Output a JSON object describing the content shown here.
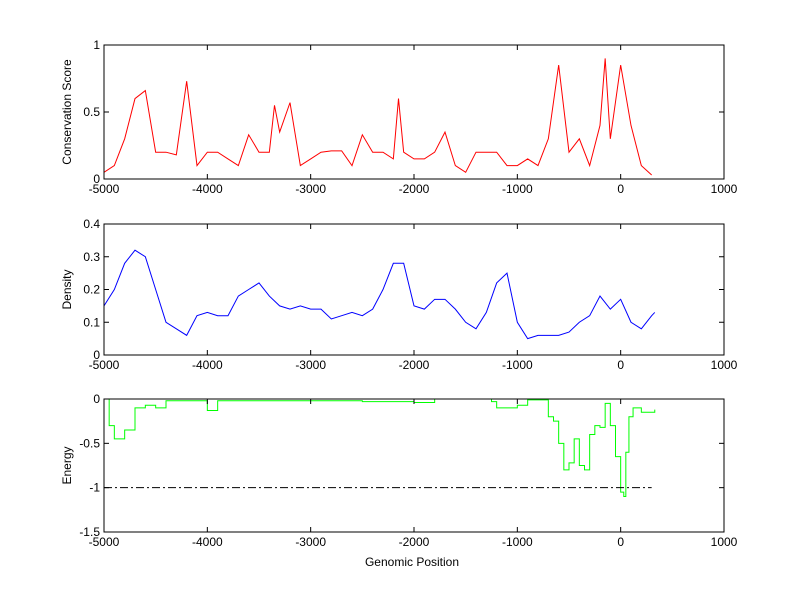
{
  "chart_data": [
    {
      "type": "line",
      "title": "",
      "xlabel": "",
      "ylabel": "Conservation Score",
      "xlim": [
        -5000,
        1000
      ],
      "ylim": [
        0,
        1
      ],
      "xticks": [
        "-5000",
        "-4000",
        "-3000",
        "-2000",
        "-1000",
        "0",
        "1000"
      ],
      "yticks": [
        "0",
        "0.5",
        "1"
      ],
      "color": "#ff0000",
      "x": [
        -5000,
        -4900,
        -4800,
        -4700,
        -4600,
        -4500,
        -4400,
        -4300,
        -4200,
        -4100,
        -4000,
        -3900,
        -3800,
        -3700,
        -3600,
        -3500,
        -3400,
        -3350,
        -3300,
        -3200,
        -3100,
        -3000,
        -2900,
        -2800,
        -2700,
        -2600,
        -2500,
        -2400,
        -2300,
        -2200,
        -2150,
        -2100,
        -2000,
        -1900,
        -1800,
        -1700,
        -1600,
        -1500,
        -1400,
        -1300,
        -1200,
        -1100,
        -1000,
        -900,
        -800,
        -700,
        -600,
        -500,
        -400,
        -300,
        -200,
        -150,
        -100,
        0,
        100,
        200,
        300
      ],
      "y": [
        0.05,
        0.1,
        0.3,
        0.6,
        0.66,
        0.2,
        0.2,
        0.18,
        0.73,
        0.1,
        0.2,
        0.2,
        0.15,
        0.1,
        0.33,
        0.2,
        0.2,
        0.55,
        0.35,
        0.57,
        0.1,
        0.15,
        0.2,
        0.21,
        0.21,
        0.1,
        0.33,
        0.2,
        0.2,
        0.15,
        0.6,
        0.2,
        0.15,
        0.15,
        0.2,
        0.35,
        0.1,
        0.05,
        0.2,
        0.2,
        0.2,
        0.1,
        0.1,
        0.15,
        0.1,
        0.3,
        0.85,
        0.2,
        0.3,
        0.1,
        0.4,
        0.9,
        0.3,
        0.85,
        0.4,
        0.1,
        0.03
      ]
    },
    {
      "type": "line",
      "title": "",
      "xlabel": "",
      "ylabel": "Density",
      "xlim": [
        -5000,
        1000
      ],
      "ylim": [
        0,
        0.4
      ],
      "xticks": [
        "-5000",
        "-4000",
        "-3000",
        "-2000",
        "-1000",
        "0",
        "1000"
      ],
      "yticks": [
        "0",
        "0.1",
        "0.2",
        "0.3",
        "0.4"
      ],
      "color": "#0000ff",
      "x": [
        -5000,
        -4900,
        -4800,
        -4700,
        -4600,
        -4500,
        -4400,
        -4300,
        -4200,
        -4100,
        -4000,
        -3900,
        -3800,
        -3700,
        -3600,
        -3500,
        -3400,
        -3300,
        -3200,
        -3100,
        -3000,
        -2900,
        -2800,
        -2700,
        -2600,
        -2500,
        -2400,
        -2300,
        -2200,
        -2100,
        -2000,
        -1900,
        -1800,
        -1700,
        -1600,
        -1500,
        -1400,
        -1300,
        -1200,
        -1100,
        -1000,
        -900,
        -800,
        -700,
        -600,
        -500,
        -400,
        -300,
        -200,
        -100,
        0,
        100,
        200,
        300,
        330
      ],
      "y": [
        0.15,
        0.2,
        0.28,
        0.32,
        0.3,
        0.2,
        0.1,
        0.08,
        0.06,
        0.12,
        0.13,
        0.12,
        0.12,
        0.18,
        0.2,
        0.22,
        0.18,
        0.15,
        0.14,
        0.15,
        0.14,
        0.14,
        0.11,
        0.12,
        0.13,
        0.12,
        0.14,
        0.2,
        0.28,
        0.28,
        0.15,
        0.14,
        0.17,
        0.17,
        0.14,
        0.1,
        0.08,
        0.13,
        0.22,
        0.25,
        0.1,
        0.05,
        0.06,
        0.06,
        0.06,
        0.07,
        0.1,
        0.12,
        0.18,
        0.14,
        0.17,
        0.1,
        0.08,
        0.12,
        0.13
      ]
    },
    {
      "type": "line",
      "title": "",
      "xlabel": "Genomic Position",
      "ylabel": "Energy",
      "xlim": [
        -5000,
        1000
      ],
      "ylim": [
        -1.5,
        0
      ],
      "xticks": [
        "-5000",
        "-4000",
        "-3000",
        "-2000",
        "-1000",
        "0",
        "1000"
      ],
      "yticks": [
        "0",
        "-0.5",
        "-1",
        "-1.5"
      ],
      "color": "#00ff00",
      "step": true,
      "x": [
        -5000,
        -4950,
        -4900,
        -4800,
        -4700,
        -4600,
        -4500,
        -4400,
        -4000,
        -3900,
        -3000,
        -2500,
        -2200,
        -2000,
        -1800,
        -1300,
        -1250,
        -1200,
        -1000,
        -900,
        -750,
        -700,
        -650,
        -600,
        -550,
        -500,
        -450,
        -400,
        -350,
        -300,
        -250,
        -200,
        -150,
        -100,
        -50,
        0,
        30,
        50,
        80,
        120,
        200,
        330
      ],
      "y": [
        0,
        -0.3,
        -0.45,
        -0.35,
        -0.1,
        -0.07,
        -0.1,
        -0.02,
        -0.13,
        -0.02,
        -0.02,
        -0.03,
        -0.03,
        -0.04,
        0,
        0,
        -0.03,
        -0.1,
        -0.07,
        -0.01,
        -0.01,
        -0.2,
        -0.25,
        -0.5,
        -0.8,
        -0.72,
        -0.45,
        -0.75,
        -0.8,
        -0.4,
        -0.3,
        -0.32,
        -0.05,
        -0.3,
        -0.65,
        -1.05,
        -1.1,
        -0.6,
        -0.2,
        -0.1,
        -0.15,
        -0.12
      ],
      "threshold": {
        "y": -1,
        "x": [
          -5000,
          300
        ],
        "style": "dash-dot",
        "color": "#000000"
      }
    }
  ]
}
